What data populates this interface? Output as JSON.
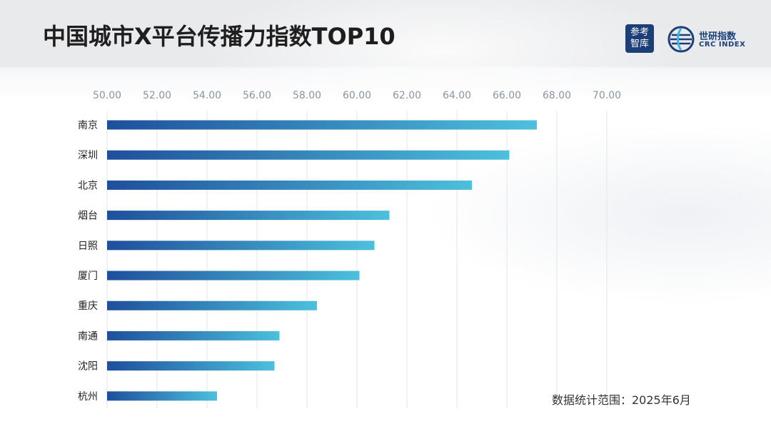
{
  "header": {
    "title": "中国城市X平台传播力指数TOP10",
    "logo_left": [
      "参考",
      "智库"
    ],
    "logo_right_cn": "世研指数",
    "logo_right_en": "CRC INDEX"
  },
  "footnote": "数据统计范围：2025年6月",
  "colors": {
    "bar_start": "#1f4f9c",
    "bar_end": "#4cc0dc",
    "grid": "#e6e6e6",
    "tick_text": "#8a94a3",
    "category_text": "#222222",
    "logo_blue": "#1d3f78"
  },
  "chart_data": {
    "type": "bar",
    "orientation": "horizontal",
    "categories": [
      "南京",
      "深圳",
      "北京",
      "烟台",
      "日照",
      "厦门",
      "重庆",
      "南通",
      "沈阳",
      "杭州"
    ],
    "values": [
      67.2,
      66.1,
      64.6,
      61.3,
      60.7,
      60.1,
      58.4,
      56.9,
      56.7,
      54.4
    ],
    "xlim": [
      50,
      70
    ],
    "xticks": [
      "50.00",
      "52.00",
      "54.00",
      "56.00",
      "58.00",
      "60.00",
      "62.00",
      "64.00",
      "66.00",
      "68.00",
      "70.00"
    ],
    "grid": true,
    "tick_position": "top",
    "title": "中国城市X平台传播力指数TOP10"
  }
}
